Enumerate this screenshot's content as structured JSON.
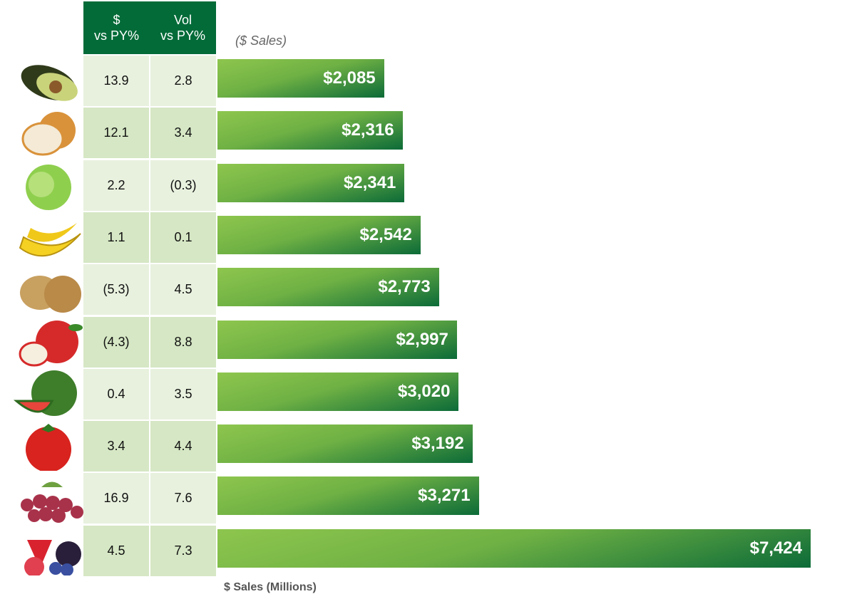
{
  "header": {
    "col1": "$\nvs PY%",
    "col1_line1": "$",
    "col1_line2": "vs PY%",
    "col2_line1": "Vol",
    "col2_line2": "vs PY%"
  },
  "chart_data": {
    "type": "bar",
    "orientation": "horizontal",
    "subtitle": "($ Sales)",
    "xlabel": "$ Sales (Millions)",
    "xlim": [
      0,
      7424
    ],
    "grid": false,
    "items": [
      {
        "icon": "avocado-icon",
        "dollar_vs_py": "13.9",
        "vol_vs_py": "2.8",
        "value": 2085,
        "label": "$2,085"
      },
      {
        "icon": "onion-icon",
        "dollar_vs_py": "12.1",
        "vol_vs_py": "3.4",
        "value": 2316,
        "label": "$2,316"
      },
      {
        "icon": "lettuce-icon",
        "dollar_vs_py": "2.2",
        "vol_vs_py": "(0.3)",
        "value": 2341,
        "label": "$2,341"
      },
      {
        "icon": "banana-icon",
        "dollar_vs_py": "1.1",
        "vol_vs_py": "0.1",
        "value": 2542,
        "label": "$2,542"
      },
      {
        "icon": "potato-icon",
        "dollar_vs_py": "(5.3)",
        "vol_vs_py": "4.5",
        "value": 2773,
        "label": "$2,773"
      },
      {
        "icon": "apple-icon",
        "dollar_vs_py": "(4.3)",
        "vol_vs_py": "8.8",
        "value": 2997,
        "label": "$2,997"
      },
      {
        "icon": "watermelon-icon",
        "dollar_vs_py": "0.4",
        "vol_vs_py": "3.5",
        "value": 3020,
        "label": "$3,020"
      },
      {
        "icon": "tomato-icon",
        "dollar_vs_py": "3.4",
        "vol_vs_py": "4.4",
        "value": 3192,
        "label": "$3,192"
      },
      {
        "icon": "grapes-icon",
        "dollar_vs_py": "16.9",
        "vol_vs_py": "7.6",
        "value": 3271,
        "label": "$3,271"
      },
      {
        "icon": "berries-icon",
        "dollar_vs_py": "4.5",
        "vol_vs_py": "7.3",
        "value": 7424,
        "label": "$7,424"
      }
    ]
  },
  "colors": {
    "header": "#036b38",
    "bar_light": "#8ec64e",
    "bar_dark": "#0c6b38",
    "row_odd": "#e8f1de",
    "row_even": "#d5e7c4"
  }
}
